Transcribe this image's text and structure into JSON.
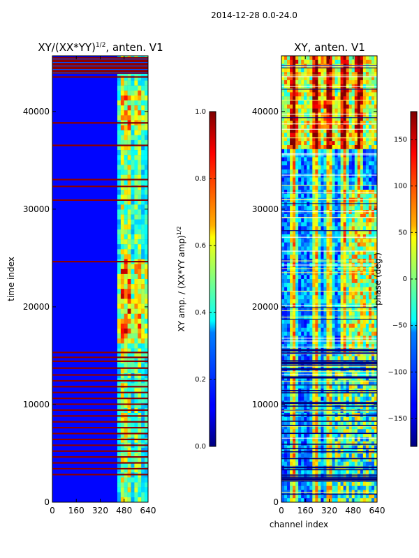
{
  "figure": {
    "suptitle": "2014-12-28 0.0-24.0"
  },
  "chart_data": [
    {
      "type": "heatmap",
      "title_main": "XY/(XX*YY)",
      "title_sup": "1/2",
      "title_tail": ", anten. V1",
      "xlabel": "",
      "ylabel": "time index",
      "xlim": [
        0,
        640
      ],
      "ylim": [
        0,
        45700
      ],
      "xticks": [
        0,
        160,
        320,
        480,
        640
      ],
      "yticks": [
        0,
        10000,
        20000,
        30000,
        40000
      ],
      "colorbar": {
        "label_main": "XY amp. / (XX*YY amp)",
        "label_sup": "1/2",
        "range": [
          0.0,
          1.0
        ],
        "ticks": [
          "0.0",
          "0.2",
          "0.4",
          "0.6",
          "0.8",
          "1.0"
        ],
        "tick_values": [
          0.0,
          0.2,
          0.4,
          0.6,
          0.8,
          1.0
        ],
        "colormap": "jet"
      },
      "description_value_range": [
        0,
        1
      ],
      "flagged_rows": [
        43500,
        43900,
        44300,
        44700,
        45100,
        38800,
        36500,
        33000,
        32300,
        30900,
        24600,
        15300,
        14800,
        14400,
        13700,
        13000,
        12400,
        11800,
        11200,
        10600,
        10000,
        9400,
        8800,
        8200,
        7600,
        7000,
        6400,
        5800,
        5200,
        4600,
        4000,
        3400,
        2800
      ]
    },
    {
      "type": "heatmap",
      "title": "XY, anten. V1",
      "xlabel": "channel index",
      "ylabel": "",
      "xlim": [
        0,
        640
      ],
      "ylim": [
        0,
        45700
      ],
      "xticks": [
        0,
        160,
        320,
        480,
        640
      ],
      "yticks": [
        0,
        10000,
        20000,
        30000,
        40000
      ],
      "colorbar": {
        "label": "phase (deg.)",
        "range": [
          -180,
          180
        ],
        "ticks": [
          "150",
          "100",
          "50",
          "0",
          "−50",
          "−100",
          "−150"
        ],
        "tick_values": [
          150,
          100,
          50,
          0,
          -50,
          -100,
          -150
        ],
        "colormap": "jet"
      },
      "phase_band_channels": [
        80,
        230,
        320,
        420,
        520
      ]
    }
  ]
}
